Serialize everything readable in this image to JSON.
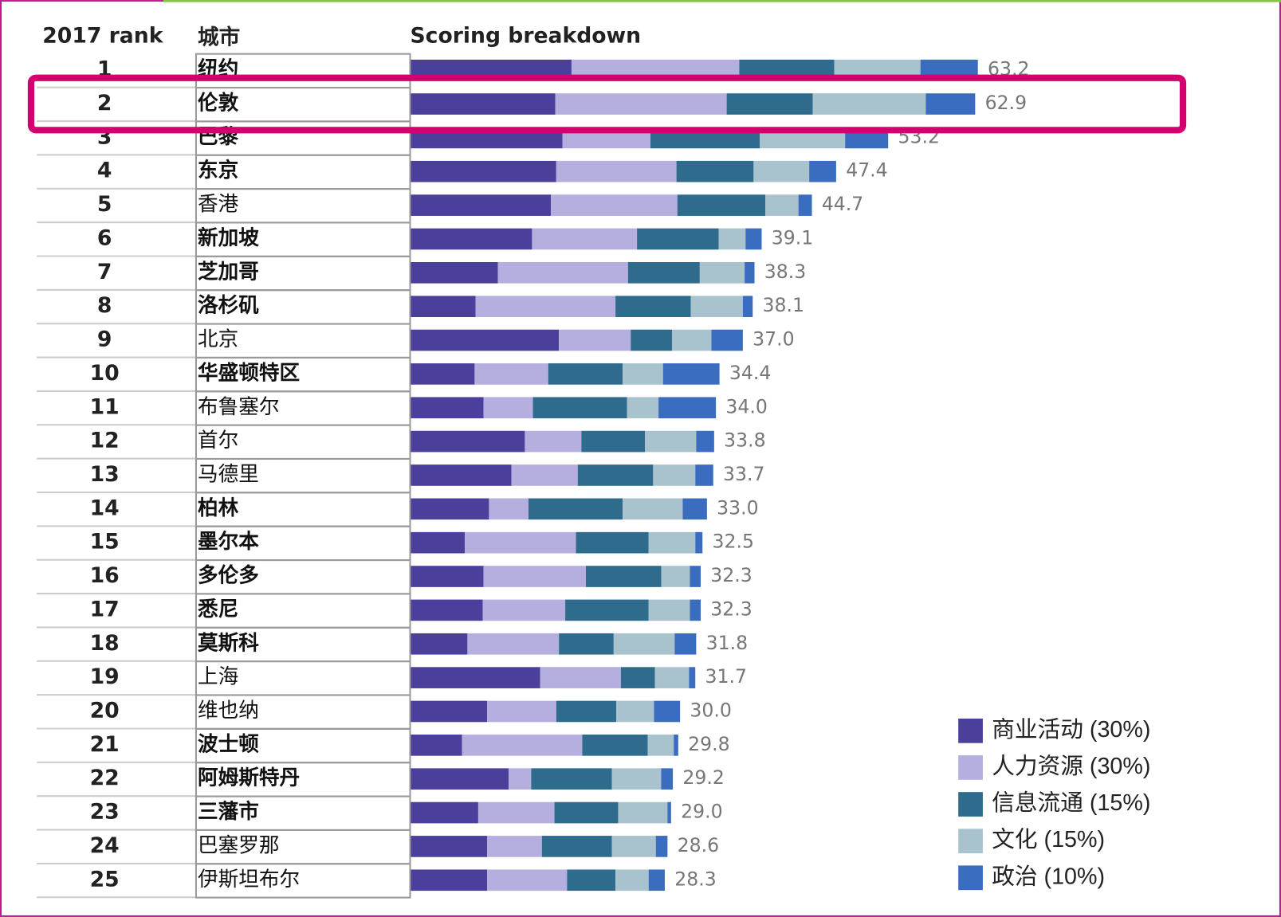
{
  "chart_data": {
    "type": "stacked-bar",
    "headers": [
      "2017 rank",
      "城市",
      "Scoring breakdown"
    ],
    "ranks": [
      1,
      2,
      3,
      4,
      5,
      6,
      7,
      8,
      9,
      10,
      11,
      12,
      13,
      14,
      15,
      16,
      17,
      18,
      19,
      20,
      21,
      22,
      23,
      24,
      25
    ],
    "categories": [
      "纽约",
      "伦敦",
      "巴黎",
      "东京",
      "香港",
      "新加坡",
      "芝加哥",
      "洛杉矶",
      "北京",
      "华盛顿特区",
      "布鲁塞尔",
      "首尔",
      "马德里",
      "柏林",
      "墨尔本",
      "多伦多",
      "悉尼",
      "莫斯科",
      "上海",
      "维也纳",
      "波士顿",
      "阿姆斯特丹",
      "三藩市",
      "巴塞罗那",
      "伊斯坦布尔"
    ],
    "bold_categories": [
      true,
      true,
      true,
      true,
      false,
      true,
      true,
      true,
      false,
      true,
      false,
      false,
      false,
      true,
      true,
      true,
      true,
      true,
      false,
      false,
      true,
      true,
      true,
      false,
      false
    ],
    "highlight": 1,
    "series": [
      {
        "name": "商业活动 (30%)",
        "color": "#4b3f9c",
        "values": [
          17.9,
          16.1,
          16.9,
          16.2,
          15.6,
          13.5,
          9.7,
          7.2,
          16.5,
          7.1,
          8.1,
          12.7,
          11.2,
          8.7,
          6.0,
          8.1,
          8.0,
          6.3,
          14.4,
          8.5,
          5.7,
          10.9,
          7.5,
          8.5,
          8.5
        ]
      },
      {
        "name": "人力资源 (30%)",
        "color": "#b5afe0",
        "values": [
          18.7,
          19.1,
          9.8,
          13.4,
          14.1,
          11.7,
          14.5,
          15.6,
          8.0,
          8.2,
          5.5,
          6.3,
          7.4,
          4.4,
          12.4,
          11.4,
          9.2,
          10.2,
          9.0,
          7.7,
          13.4,
          2.5,
          8.5,
          6.1,
          8.9
        ]
      },
      {
        "name": "信息流通 (15%)",
        "color": "#2e6b8c",
        "values": [
          10.6,
          9.6,
          12.2,
          8.6,
          9.8,
          9.1,
          8.0,
          8.4,
          4.6,
          8.3,
          10.5,
          7.1,
          8.4,
          10.5,
          8.1,
          8.4,
          9.3,
          6.1,
          3.8,
          6.7,
          7.3,
          9.0,
          7.1,
          7.8,
          5.4
        ]
      },
      {
        "name": "文化 (15%)",
        "color": "#a9c3ce",
        "values": [
          9.6,
          12.6,
          9.5,
          6.2,
          3.7,
          3.0,
          5.0,
          5.8,
          4.4,
          4.5,
          3.5,
          5.7,
          4.7,
          6.7,
          5.2,
          3.2,
          4.6,
          6.8,
          3.8,
          4.2,
          2.9,
          5.5,
          5.5,
          4.9,
          3.7
        ]
      },
      {
        "name": "政治 (10%)",
        "color": "#3a6cc0",
        "values": [
          6.4,
          5.5,
          4.8,
          3.0,
          1.5,
          1.8,
          1.1,
          1.1,
          3.5,
          6.3,
          6.4,
          2.0,
          2.0,
          2.7,
          0.8,
          1.2,
          1.2,
          2.4,
          0.7,
          2.9,
          0.5,
          1.3,
          0.4,
          1.3,
          1.8
        ]
      }
    ],
    "value_labels": [
      "63.2",
      "62.9",
      "53.2",
      "47.4",
      "44.7",
      "39.1",
      "38.3",
      "38.1",
      "37.0",
      "34.4",
      "34.0",
      "33.8",
      "33.7",
      "33.0",
      "32.5",
      "32.3",
      "32.3",
      "31.8",
      "31.7",
      "30.0",
      "29.8",
      "29.2",
      "29.0",
      "28.6",
      "28.3"
    ]
  }
}
